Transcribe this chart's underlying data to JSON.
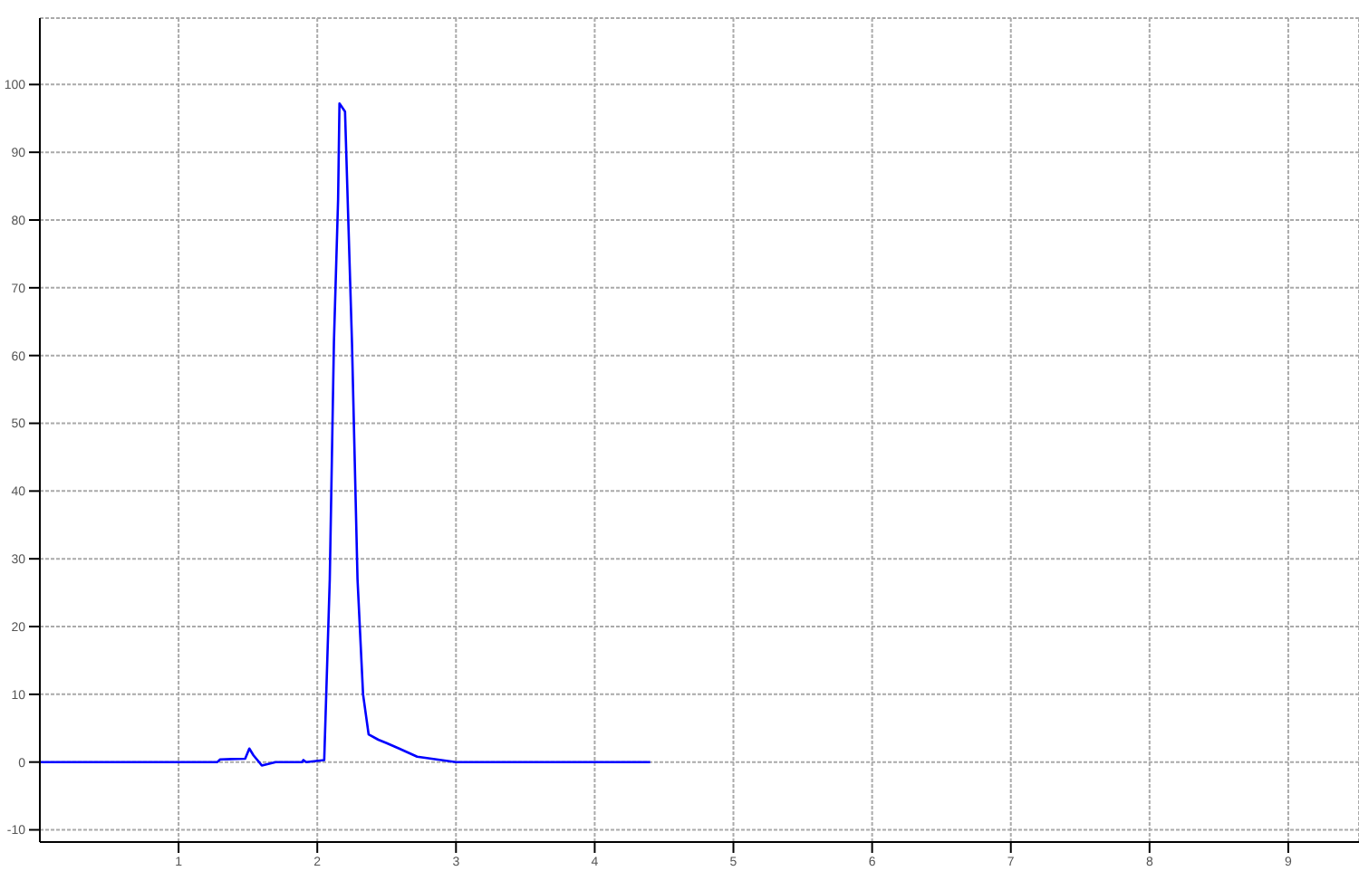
{
  "chart_data": {
    "type": "line",
    "x": [
      0,
      1.28,
      1.3,
      1.48,
      1.51,
      1.54,
      1.6,
      1.7,
      1.8,
      1.89,
      1.9,
      1.92,
      2.05,
      2.09,
      2.12,
      2.15,
      2.16,
      2.2,
      2.25,
      2.29,
      2.33,
      2.37,
      2.44,
      2.5,
      2.59,
      2.72,
      3.0,
      3.5,
      4.4
    ],
    "series": [
      {
        "color": "#0000ff",
        "values": [
          0,
          0,
          0.4,
          0.5,
          2,
          1,
          -0.5,
          0,
          0,
          0,
          0.3,
          0,
          0.3,
          27,
          62,
          83,
          97.2,
          96,
          62,
          27,
          10,
          4.1,
          3.3,
          2.8,
          2,
          0.8,
          0,
          0,
          0
        ]
      }
    ],
    "xlim": [
      0,
      9.51
    ],
    "xticks": [
      1,
      2,
      3,
      4,
      5,
      6,
      7,
      8,
      9
    ],
    "ylim": [
      -11.8,
      109.8
    ],
    "yticks": [
      -10,
      0,
      10,
      20,
      30,
      40,
      50,
      60,
      70,
      80,
      90,
      100
    ],
    "grid": true,
    "line_style": "solid",
    "marker": "none"
  }
}
